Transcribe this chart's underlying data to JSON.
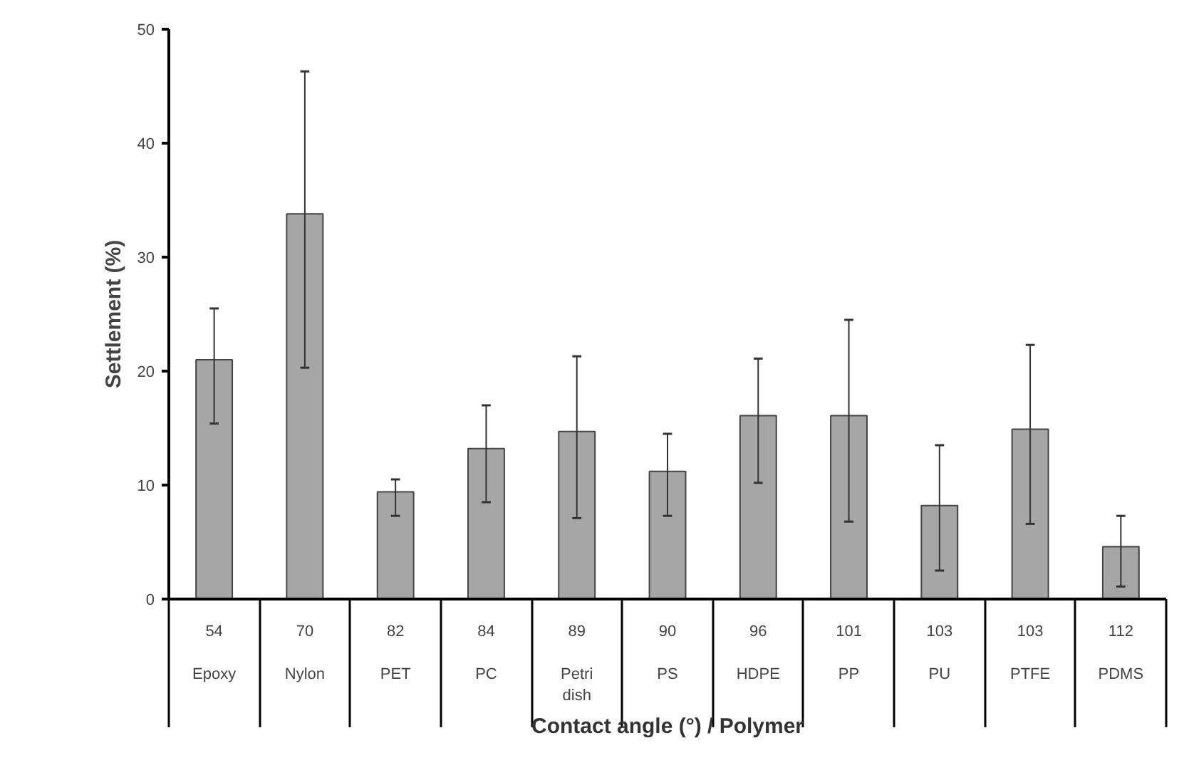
{
  "chart_data": {
    "type": "bar",
    "annotations": [
      "Contact angle (°) / Polymer"
    ],
    "ylabel": "Settlement (%)",
    "categories": [
      "54\nEpoxy",
      "70\nNylon",
      "82\nPET",
      "84\nPC",
      "89\nPetri dish",
      "90\nPS",
      "96\nHDPE",
      "101\nPP",
      "103\nPU",
      "103\nPTFE",
      "112\nPDMS"
    ],
    "values": [
      21.0,
      33.8,
      9.4,
      13.2,
      14.7,
      11.2,
      16.1,
      16.1,
      8.2,
      14.9,
      4.6
    ],
    "errors": [
      [
        15.4,
        25.5
      ],
      [
        20.3,
        46.3
      ],
      [
        7.3,
        10.5
      ],
      [
        8.5,
        17.0
      ],
      [
        7.1,
        21.3
      ],
      [
        7.3,
        14.5
      ],
      [
        10.2,
        21.1
      ],
      [
        6.8,
        24.5
      ],
      [
        2.5,
        13.5
      ],
      [
        6.6,
        22.3
      ],
      [
        1.1,
        7.3
      ]
    ],
    "color": "#a6a6a6",
    "ylim": [
      0,
      50
    ],
    "yticks": [
      0,
      10,
      20,
      30,
      40,
      50
    ],
    "grid": false
  }
}
